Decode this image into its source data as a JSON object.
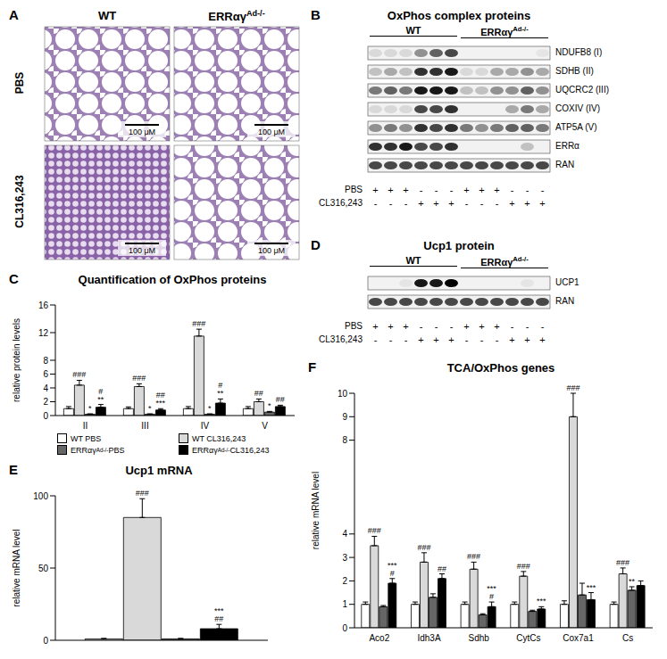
{
  "figure": {
    "chart_panels": [
      "C",
      "E",
      "F"
    ],
    "panels": {
      "A": {
        "letter": "A",
        "columns": [
          "WT",
          "ERRαγAd-/-"
        ],
        "rows": [
          "PBS",
          "CL316,243"
        ],
        "scale_bar": "100 μM"
      },
      "B": {
        "letter": "B",
        "title": "OxPhos complex proteins",
        "groups": [
          "WT",
          "ERRαγAd-/-"
        ],
        "blots": [
          {
            "label": "NDUFB8 (I)",
            "intensity": [
              0.1,
              0.1,
              0.1,
              0.4,
              0.6,
              0.7,
              0,
              0,
              0,
              0,
              0,
              0.05
            ]
          },
          {
            "label": "SDHB (II)",
            "intensity": [
              0.2,
              0.3,
              0.2,
              0.8,
              0.8,
              0.9,
              0.1,
              0.1,
              0.3,
              0.3,
              0.4,
              0.3
            ]
          },
          {
            "label": "UQCRC2 (III)",
            "intensity": [
              0.5,
              0.6,
              0.5,
              0.9,
              0.9,
              0.9,
              0.2,
              0.2,
              0.4,
              0.4,
              0.6,
              0.4
            ]
          },
          {
            "label": "COXIV (IV)",
            "intensity": [
              0.1,
              0.1,
              0.1,
              0.7,
              0.7,
              0.8,
              0,
              0,
              0,
              0.3,
              0.5,
              0.3
            ]
          },
          {
            "label": "ATP5A (V)",
            "intensity": [
              0.4,
              0.5,
              0.4,
              0.8,
              0.7,
              0.8,
              0.5,
              0.4,
              0.5,
              0.6,
              0.6,
              0.5
            ]
          },
          {
            "label": "ERRα",
            "intensity": [
              0.8,
              0.8,
              0.9,
              0.7,
              0.7,
              0.8,
              0,
              0,
              0,
              0,
              0.2,
              0
            ]
          },
          {
            "label": "RAN",
            "intensity": [
              0.7,
              0.7,
              0.7,
              0.7,
              0.7,
              0.7,
              0.7,
              0.7,
              0.7,
              0.7,
              0.7,
              0.7
            ]
          }
        ],
        "treatments": [
          {
            "label": "PBS",
            "marks": [
              "+",
              "+",
              "+",
              "-",
              "-",
              "-",
              "+",
              "+",
              "+",
              "-",
              "-",
              "-"
            ]
          },
          {
            "label": "CL316,243",
            "marks": [
              "-",
              "-",
              "-",
              "+",
              "+",
              "+",
              "-",
              "-",
              "-",
              "+",
              "+",
              "+"
            ]
          }
        ]
      },
      "D": {
        "letter": "D",
        "title": "Ucp1 protein",
        "groups": [
          "WT",
          "ERRαγAd-/-"
        ],
        "blots": [
          {
            "label": "UCP1",
            "intensity": [
              0,
              0,
              0.05,
              0.9,
              0.9,
              1,
              0,
              0,
              0,
              0,
              0.05,
              0
            ]
          },
          {
            "label": "RAN",
            "intensity": [
              0.7,
              0.7,
              0.7,
              0.7,
              0.7,
              0.7,
              0.7,
              0.7,
              0.7,
              0.7,
              0.7,
              0.7
            ]
          }
        ],
        "treatments": [
          {
            "label": "PBS",
            "marks": [
              "+",
              "+",
              "+",
              "-",
              "-",
              "-",
              "+",
              "+",
              "+",
              "-",
              "-",
              "-"
            ]
          },
          {
            "label": "CL316,243",
            "marks": [
              "-",
              "-",
              "-",
              "+",
              "+",
              "+",
              "-",
              "-",
              "-",
              "+",
              "+",
              "+"
            ]
          }
        ]
      }
    }
  },
  "chart_data": [
    {
      "type": "bar",
      "title": "Quantification of OxPhos proteins",
      "y_label": "relative protein levels",
      "categories": [
        "II",
        "III",
        "IV",
        "V"
      ],
      "ylim": [
        0,
        16
      ],
      "yticks": [
        0,
        2,
        4,
        6,
        8,
        12,
        16
      ],
      "grid": false,
      "legend": "bottom",
      "series": [
        {
          "name": "WT PBS",
          "color": "#ffffff",
          "values": [
            1.0,
            1.0,
            1.0,
            1.0
          ],
          "errors": [
            0.3,
            0.25,
            0.3,
            0.3
          ],
          "annotations": [
            null,
            null,
            null,
            null
          ]
        },
        {
          "name": "WT CL316,243",
          "color": "#d9d9d9",
          "values": [
            4.4,
            4.2,
            11.5,
            2.0
          ],
          "errors": [
            0.7,
            0.4,
            1.0,
            0.4
          ],
          "annotations": [
            [
              "###"
            ],
            [
              "###"
            ],
            [
              "###"
            ],
            [
              "##"
            ]
          ]
        },
        {
          "name": "ERRαγAd-/- PBS",
          "color": "#666666",
          "values": [
            0.2,
            0.2,
            0.2,
            0.5
          ],
          "errors": [
            0.05,
            0.05,
            0.05,
            0.1
          ],
          "annotations": [
            [
              "*"
            ],
            [
              "*"
            ],
            [
              "*"
            ],
            [
              "*"
            ]
          ]
        },
        {
          "name": "ERRαγAd-/- CL316,243",
          "color": "#000000",
          "values": [
            1.2,
            0.8,
            1.8,
            1.3
          ],
          "errors": [
            0.4,
            0.2,
            0.6,
            0.2
          ],
          "annotations": [
            [
              "#",
              "**"
            ],
            [
              "##",
              "***"
            ],
            [
              "#",
              "**"
            ],
            [
              "##"
            ]
          ]
        }
      ]
    },
    {
      "type": "bar",
      "title": "Ucp1 mRNA",
      "y_label": "relative mRNA level",
      "ylim": [
        0,
        100
      ],
      "yticks": [
        0,
        50,
        100
      ],
      "grid": false,
      "tick_labels": "y",
      "series": [
        {
          "name": "WT PBS",
          "color": "#ffffff",
          "values": [
            1.0
          ],
          "errors": [
            0.3
          ],
          "annotations": [
            null
          ]
        },
        {
          "name": "WT CL316,243",
          "color": "#d9d9d9",
          "values": [
            85
          ],
          "errors": [
            13
          ],
          "annotations": [
            [
              "###"
            ]
          ]
        },
        {
          "name": "ERRαγAd-/- PBS",
          "color": "#666666",
          "values": [
            1.0
          ],
          "errors": [
            0.3
          ],
          "annotations": [
            null
          ]
        },
        {
          "name": "ERRαγAd-/- CL316,243",
          "color": "#000000",
          "values": [
            8
          ],
          "errors": [
            3
          ],
          "annotations": [
            [
              "***",
              "##"
            ]
          ]
        }
      ]
    },
    {
      "type": "bar",
      "title": "TCA/OxPhos genes",
      "y_label": "relative mRNA level",
      "categories": [
        "Aco2",
        "Idh3A",
        "Sdhb",
        "CytCs",
        "Cox7a1",
        "Cs"
      ],
      "ylim": [
        0,
        10
      ],
      "yticks": [
        0,
        1,
        2,
        3,
        4,
        8,
        9,
        10
      ],
      "grid": false,
      "series": [
        {
          "name": "WT PBS",
          "color": "#ffffff",
          "values": [
            1.0,
            1.0,
            1.0,
            1.0,
            1.0,
            1.0
          ],
          "errors": [
            0.1,
            0.1,
            0.1,
            0.1,
            0.15,
            0.1
          ],
          "annotations": [
            null,
            null,
            null,
            null,
            null,
            null
          ]
        },
        {
          "name": "WT CL316,243",
          "color": "#d9d9d9",
          "values": [
            3.5,
            2.8,
            2.5,
            2.2,
            9.0,
            2.3
          ],
          "errors": [
            0.4,
            0.4,
            0.3,
            0.2,
            1.0,
            0.25
          ],
          "annotations": [
            [
              "###"
            ],
            [
              "###"
            ],
            [
              "###"
            ],
            [
              "###"
            ],
            [
              "###"
            ],
            [
              "###"
            ]
          ]
        },
        {
          "name": "ERRαγAd-/- PBS",
          "color": "#666666",
          "values": [
            0.9,
            1.3,
            0.55,
            0.7,
            1.4,
            1.6
          ],
          "errors": [
            0.05,
            0.15,
            0.05,
            0.05,
            0.5,
            0.15
          ],
          "annotations": [
            null,
            null,
            null,
            null,
            null,
            [
              "**"
            ]
          ]
        },
        {
          "name": "ERRαγAd-/- CL316,243",
          "color": "#000000",
          "values": [
            1.9,
            2.1,
            0.9,
            0.8,
            1.2,
            1.8
          ],
          "errors": [
            0.2,
            0.2,
            0.2,
            0.1,
            0.3,
            0.2
          ],
          "annotations": [
            [
              "***",
              "#"
            ],
            [
              "##"
            ],
            [
              "***",
              "#"
            ],
            [
              "***"
            ],
            [
              "***"
            ],
            null
          ]
        }
      ]
    }
  ]
}
